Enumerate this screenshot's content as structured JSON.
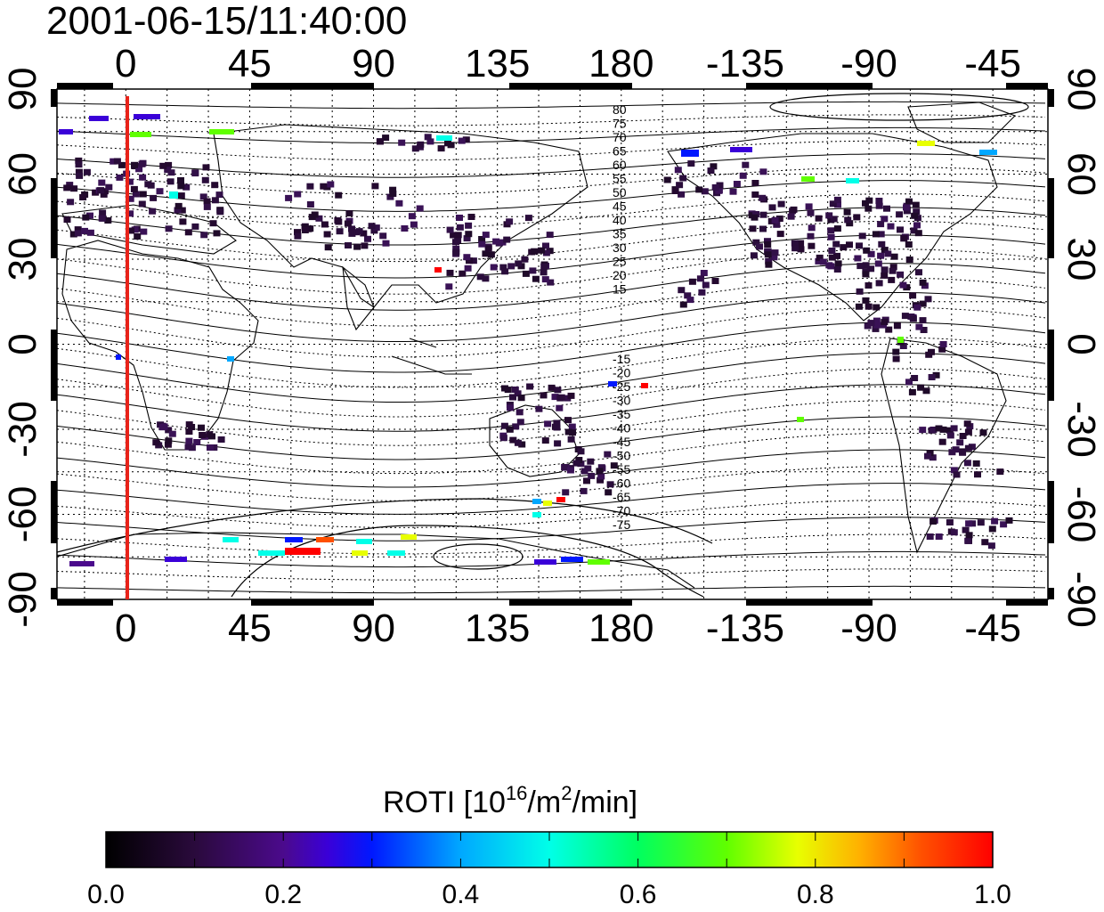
{
  "title": "2001-06-15/11:40:00",
  "map": {
    "lon_ticks_top": [
      "0",
      "45",
      "90",
      "135",
      "180",
      "-135",
      "-90",
      "-45"
    ],
    "lon_ticks_bottom": [
      "0",
      "45",
      "90",
      "135",
      "180",
      "-135",
      "-90",
      "-45"
    ],
    "lat_ticks_left": [
      "90",
      "60",
      "30",
      "0",
      "-30",
      "-60",
      "-90"
    ],
    "lat_ticks_right": [
      "90",
      "60",
      "30",
      "0",
      "-30",
      "-60",
      "-90"
    ],
    "contour_labels_north": [
      "80",
      "75",
      "70",
      "65",
      "60",
      "55",
      "50",
      "45",
      "40",
      "35",
      "30",
      "25",
      "20",
      "15"
    ],
    "contour_labels_south": [
      "-15",
      "-20",
      "-25",
      "-30",
      "-35",
      "-40",
      "-45",
      "-50",
      "-55",
      "-60",
      "-65",
      "-70",
      "-75"
    ],
    "lon_range": [
      -25,
      335
    ],
    "lat_range": [
      -90,
      90
    ],
    "grid": "dotted 15-degree",
    "terminator_color": "#e8231a"
  },
  "colorbar": {
    "title_main": "ROTI  [10",
    "title_exp1": "16",
    "title_mid": "/m",
    "title_exp2": "2",
    "title_end": "/min]",
    "tick_labels": [
      "0.0",
      "0.2",
      "0.4",
      "0.6",
      "0.8",
      "1.0"
    ],
    "range": [
      0.0,
      1.0
    ]
  }
}
